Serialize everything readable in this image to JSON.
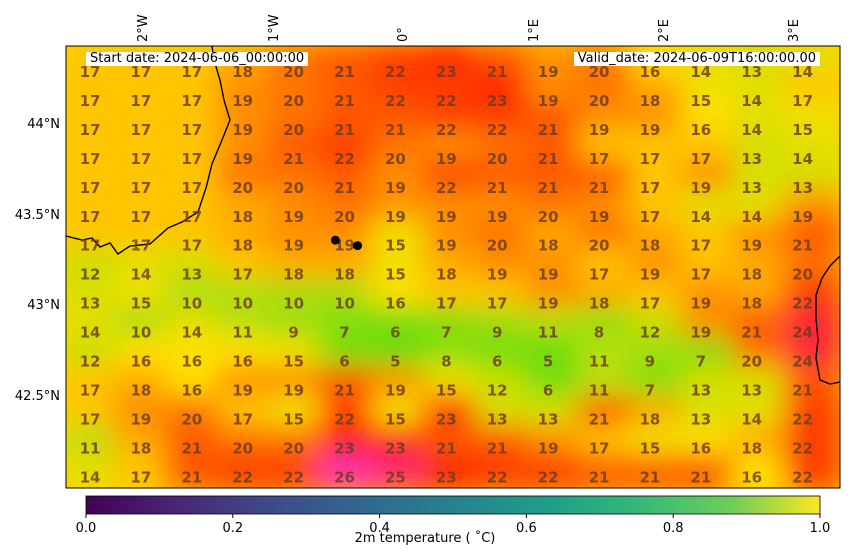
{
  "banner": {
    "start": "Start date: 2024-06-06_00:00:00",
    "valid": "Valid_date: 2024-06-09T16:00:00.00"
  },
  "lon_ticks": [
    "2°W",
    "1°W",
    "0°",
    "1°E",
    "2°E",
    "3°E"
  ],
  "lat_ticks": [
    "44°N",
    "43.5°N",
    "43°N",
    "42.5°N"
  ],
  "colorbar": {
    "title": "2m temperature ($^\\circ$C)",
    "title_display": "2m temperature ( ˚C)",
    "ticks": [
      "0.0",
      "0.2",
      "0.4",
      "0.6",
      "0.8",
      "1.0"
    ],
    "colormap": "viridis"
  },
  "map_colormap": {
    "low": "#66dd11",
    "mid": "#ffe000",
    "high": "#ff2200",
    "peak": "#ff33aa"
  },
  "temperature_grid": [
    [
      17,
      17,
      17,
      18,
      20,
      21,
      22,
      23,
      21,
      19,
      20,
      16,
      14,
      13,
      14
    ],
    [
      17,
      17,
      17,
      19,
      20,
      21,
      22,
      22,
      23,
      19,
      20,
      18,
      15,
      14,
      17
    ],
    [
      17,
      17,
      17,
      19,
      20,
      21,
      21,
      22,
      22,
      21,
      19,
      19,
      16,
      14,
      15
    ],
    [
      17,
      17,
      17,
      19,
      21,
      22,
      20,
      19,
      20,
      21,
      17,
      17,
      17,
      13,
      14
    ],
    [
      17,
      17,
      17,
      20,
      20,
      21,
      19,
      22,
      21,
      21,
      21,
      17,
      19,
      13,
      13
    ],
    [
      17,
      17,
      17,
      18,
      19,
      20,
      19,
      19,
      19,
      20,
      19,
      17,
      14,
      14,
      19
    ],
    [
      17,
      17,
      17,
      18,
      19,
      19,
      15,
      19,
      20,
      18,
      20,
      18,
      17,
      19,
      21
    ],
    [
      12,
      14,
      13,
      17,
      18,
      18,
      15,
      18,
      19,
      19,
      17,
      19,
      17,
      18,
      20
    ],
    [
      13,
      15,
      10,
      10,
      10,
      10,
      16,
      17,
      17,
      19,
      18,
      17,
      19,
      18,
      22
    ],
    [
      14,
      10,
      14,
      11,
      9,
      7,
      6,
      7,
      9,
      11,
      8,
      12,
      19,
      21,
      24
    ],
    [
      12,
      16,
      16,
      16,
      15,
      6,
      5,
      8,
      6,
      5,
      11,
      9,
      7,
      20,
      24
    ],
    [
      17,
      18,
      16,
      19,
      19,
      21,
      19,
      15,
      12,
      6,
      11,
      7,
      13,
      13,
      21
    ],
    [
      17,
      19,
      20,
      17,
      15,
      22,
      15,
      23,
      13,
      13,
      21,
      18,
      13,
      14,
      22
    ],
    [
      11,
      18,
      21,
      20,
      20,
      23,
      23,
      21,
      21,
      19,
      17,
      15,
      16,
      18,
      22
    ],
    [
      14,
      17,
      21,
      22,
      22,
      26,
      25,
      23,
      22,
      22,
      21,
      21,
      21,
      16,
      22
    ]
  ],
  "markers": [
    {
      "lon": -0.55,
      "lat": 43.38
    },
    {
      "lon": -0.38,
      "lat": 43.35
    }
  ]
}
